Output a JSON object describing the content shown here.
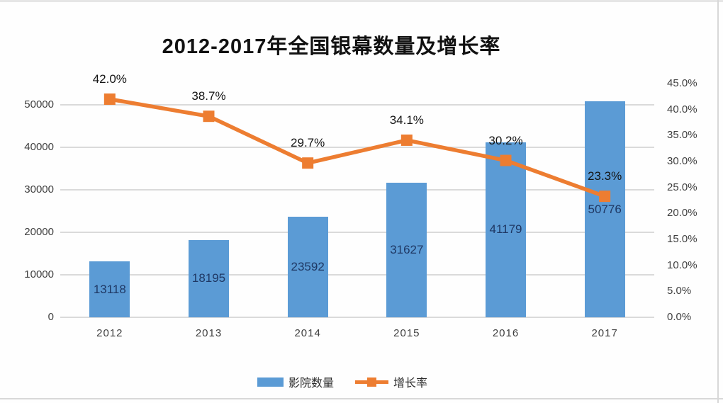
{
  "frame": {
    "border_color": "#d8d8d8"
  },
  "chart_data": {
    "type": "bar",
    "subtype": "bar+line combo, dual axis",
    "title": "2012-2017年全国银幕数量及增长率",
    "categories": [
      "2012",
      "2013",
      "2014",
      "2015",
      "2016",
      "2017"
    ],
    "series": [
      {
        "name": "影院数量",
        "chart_type": "bar",
        "axis": "left",
        "color": "#5B9BD5",
        "values": [
          13118,
          18195,
          23592,
          31627,
          41179,
          50776
        ],
        "data_labels": [
          "13118",
          "18195",
          "23592",
          "31627",
          "41179",
          "50776"
        ],
        "label_color": "#1F3864",
        "label_position": "inside-center"
      },
      {
        "name": "增长率",
        "chart_type": "line",
        "axis": "right",
        "color": "#ED7D31",
        "marker": "square",
        "values": [
          42.0,
          38.7,
          29.7,
          34.1,
          30.2,
          23.3
        ],
        "data_labels": [
          "42.0%",
          "38.7%",
          "29.7%",
          "34.1%",
          "30.2%",
          "23.3%"
        ],
        "label_color": "#141414",
        "label_position": "above"
      }
    ],
    "left_axis": {
      "min": 0,
      "max": 55000,
      "major_unit": 10000,
      "tick_values": [
        0,
        10000,
        20000,
        30000,
        40000,
        50000
      ],
      "tick_labels": [
        "0",
        "10000",
        "20000",
        "30000",
        "40000",
        "50000"
      ]
    },
    "right_axis": {
      "min": 0,
      "max": 45,
      "major_unit": 5,
      "tick_values": [
        0,
        5,
        10,
        15,
        20,
        25,
        30,
        35,
        40,
        45
      ],
      "tick_labels": [
        "0.0%",
        "5.0%",
        "10.0%",
        "15.0%",
        "20.0%",
        "25.0%",
        "30.0%",
        "35.0%",
        "40.0%",
        "45.0%"
      ]
    },
    "grid": {
      "horizontal": true,
      "vertical": false,
      "color": "#dadada"
    },
    "legend": {
      "position": "bottom",
      "entries": [
        "影院数量",
        "增长率"
      ]
    },
    "text_color": "#3f3f3f"
  }
}
